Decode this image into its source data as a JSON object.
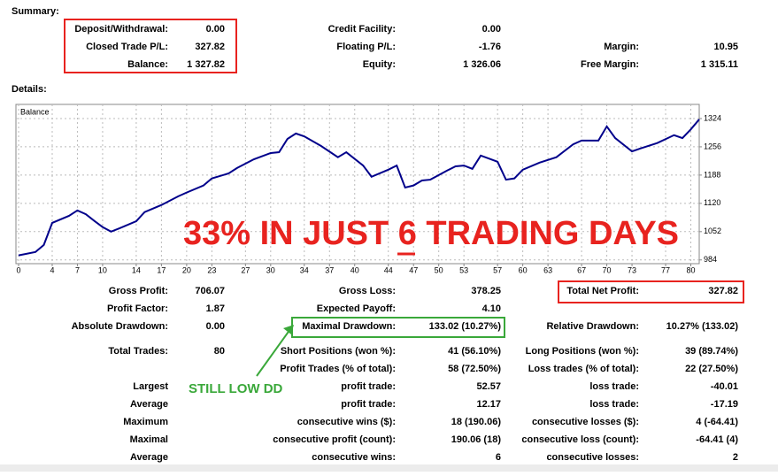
{
  "summary": {
    "title": "Summary:",
    "rows": [
      [
        {
          "label": "Deposit/Withdrawal:",
          "value": "0.00"
        },
        {
          "label": "Credit Facility:",
          "value": "0.00"
        },
        null
      ],
      [
        {
          "label": "Closed Trade P/L:",
          "value": "327.82"
        },
        {
          "label": "Floating P/L:",
          "value": "-1.76"
        },
        {
          "label": "Margin:",
          "value": "10.95"
        }
      ],
      [
        {
          "label": "Balance:",
          "value": "1 327.82"
        },
        {
          "label": "Equity:",
          "value": "1 326.06"
        },
        {
          "label": "Free Margin:",
          "value": "1 315.11"
        }
      ]
    ]
  },
  "details": {
    "title": "Details:",
    "rows": [
      [
        {
          "label": "Gross Profit:",
          "value": "706.07"
        },
        {
          "label": "Gross Loss:",
          "value": "378.25"
        },
        {
          "label": "Total Net Profit:",
          "value": "327.82"
        }
      ],
      [
        {
          "label": "Profit Factor:",
          "value": "1.87"
        },
        {
          "label": "Expected Payoff:",
          "value": "4.10"
        },
        null
      ],
      [
        {
          "label": "Absolute Drawdown:",
          "value": "0.00"
        },
        {
          "label": "Maximal Drawdown:",
          "value": "133.02 (10.27%)"
        },
        {
          "label": "Relative Drawdown:",
          "value": "10.27% (133.02)"
        }
      ],
      [
        {
          "label": "Total Trades:",
          "value": "80"
        },
        {
          "label": "Short Positions (won %):",
          "value": "41 (56.10%)"
        },
        {
          "label": "Long Positions (won %):",
          "value": "39 (89.74%)"
        }
      ],
      [
        null,
        {
          "label": "Profit Trades (% of total):",
          "value": "58 (72.50%)"
        },
        {
          "label": "Loss trades (% of total):",
          "value": "22 (27.50%)"
        }
      ],
      [
        {
          "label": "Largest"
        },
        {
          "label": "profit trade:",
          "value": "52.57"
        },
        {
          "label": "loss trade:",
          "value": "-40.01"
        }
      ],
      [
        {
          "label": "Average"
        },
        {
          "label": "profit trade:",
          "value": "12.17"
        },
        {
          "label": "loss trade:",
          "value": "-17.19"
        }
      ],
      [
        {
          "label": "Maximum"
        },
        {
          "label": "consecutive wins ($):",
          "value": "18 (190.06)"
        },
        {
          "label": "consecutive losses ($):",
          "value": "4 (-64.41)"
        }
      ],
      [
        {
          "label": "Maximal"
        },
        {
          "label": "consecutive profit (count):",
          "value": "190.06 (18)"
        },
        {
          "label": "consecutive loss (count):",
          "value": "-64.41 (4)"
        }
      ],
      [
        {
          "label": "Average"
        },
        {
          "label": "consecutive wins:",
          "value": "6"
        },
        {
          "label": "consecutive losses:",
          "value": "2"
        }
      ]
    ]
  },
  "annotations": {
    "headline": [
      "33% IN JUST ",
      "6",
      " TRADING DAYS"
    ],
    "note": "STILL LOW DD"
  },
  "chart_data": {
    "type": "line",
    "grid": true,
    "x": [
      0,
      2,
      3,
      4,
      6,
      7,
      8,
      9,
      10,
      11,
      12,
      14,
      15,
      17,
      19,
      20,
      22,
      23,
      25,
      26,
      28,
      30,
      31,
      32,
      33,
      34,
      36,
      38,
      39,
      41,
      42,
      44,
      45,
      46,
      47,
      48,
      49,
      51,
      52,
      53,
      54,
      55,
      57,
      58,
      59,
      60,
      62,
      64,
      66,
      67,
      69,
      70,
      71,
      73,
      74,
      76,
      78,
      79,
      80,
      81
    ],
    "series": [
      {
        "name": "Balance",
        "color": "#00008b",
        "values": [
          995,
          1003,
          1020,
          1073,
          1090,
          1103,
          1094,
          1078,
          1063,
          1052,
          1060,
          1077,
          1099,
          1116,
          1137,
          1146,
          1163,
          1180,
          1192,
          1205,
          1226,
          1241,
          1243,
          1275,
          1288,
          1281,
          1258,
          1231,
          1243,
          1211,
          1184,
          1201,
          1211,
          1158,
          1163,
          1175,
          1177,
          1199,
          1209,
          1211,
          1203,
          1235,
          1220,
          1177,
          1180,
          1201,
          1218,
          1231,
          1262,
          1271,
          1271,
          1305,
          1277,
          1245,
          1252,
          1265,
          1284,
          1277,
          1298,
          1322
        ]
      }
    ],
    "xlim": [
      0,
      81
    ],
    "ylim": [
      975,
      1358
    ],
    "xticks": [
      0,
      4,
      7,
      10,
      14,
      17,
      20,
      23,
      27,
      30,
      34,
      37,
      40,
      44,
      47,
      50,
      53,
      57,
      60,
      63,
      67,
      70,
      73,
      77,
      80
    ],
    "yticks": [
      984,
      1052,
      1120,
      1188,
      1256,
      1324
    ]
  }
}
